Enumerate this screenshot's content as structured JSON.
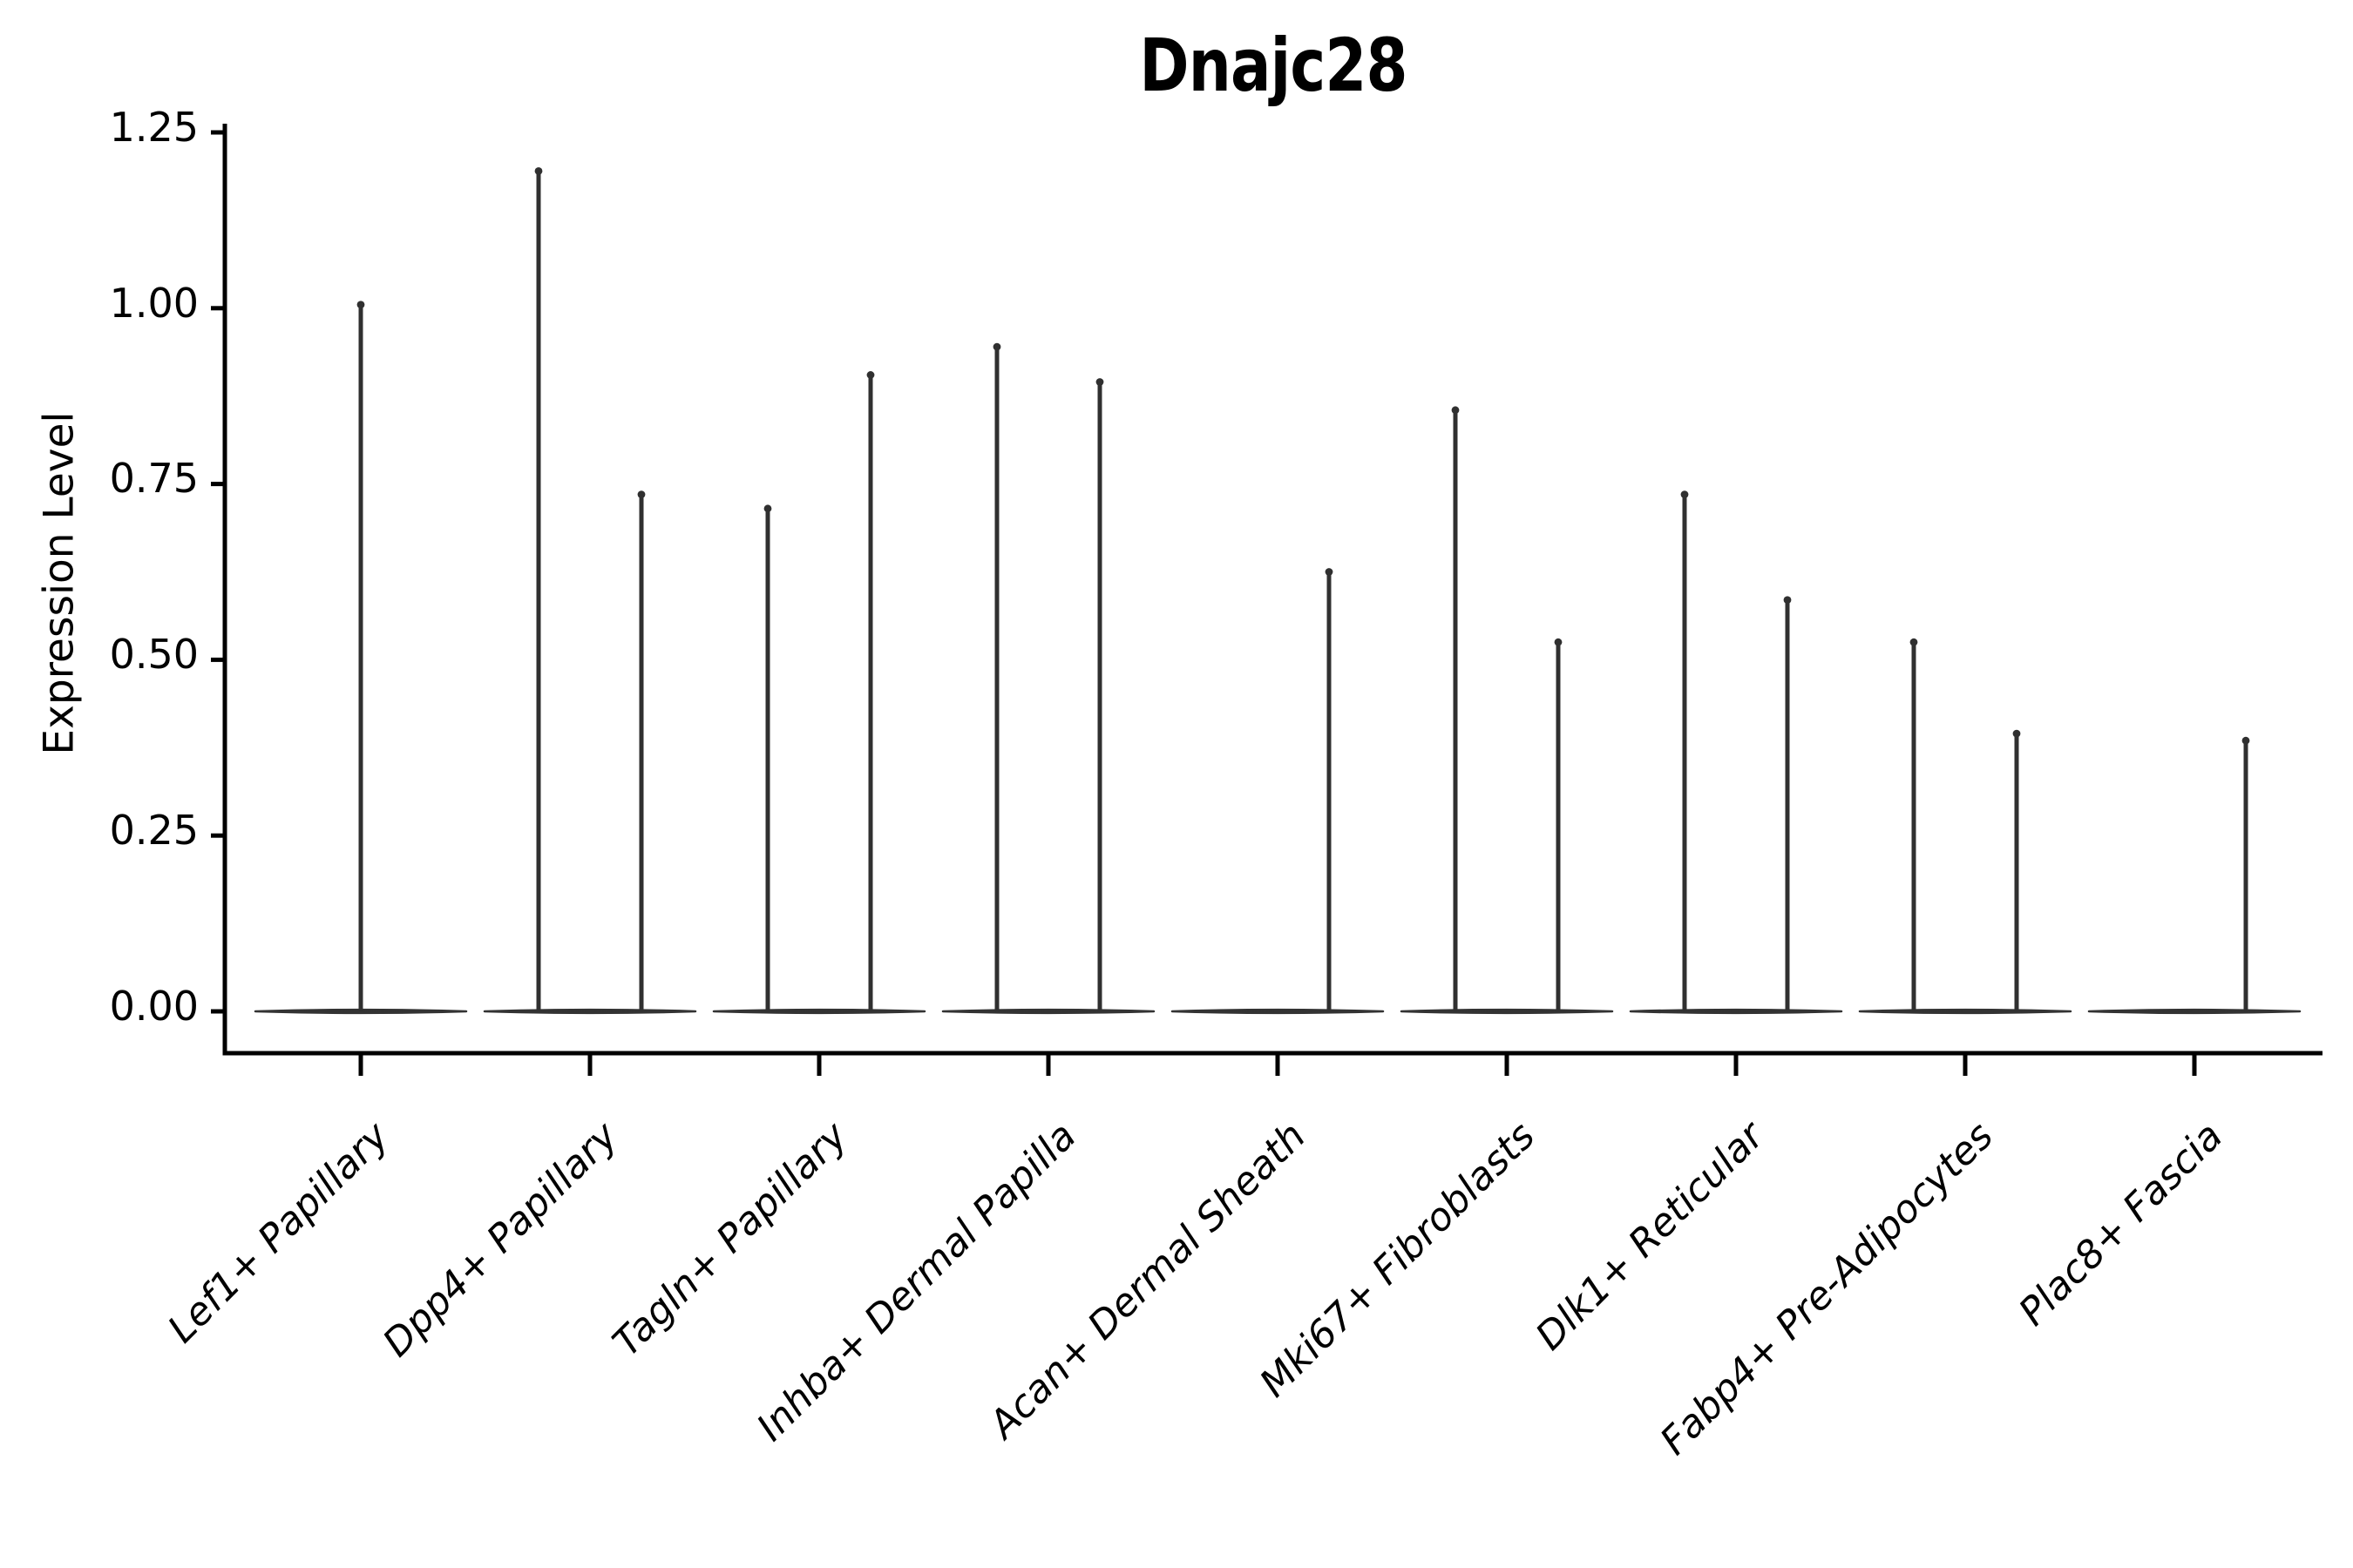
{
  "title": "Dnajc28",
  "axes": {
    "ylabel": "Expression Level",
    "xlabel": "",
    "ytick_labels": [
      "0.00",
      "0.25",
      "0.50",
      "0.75",
      "1.00",
      "1.25"
    ]
  },
  "colors": {
    "background": "#ffffff",
    "axis": "#000000",
    "text": "#000000",
    "violin": "#333333",
    "stem": "#303030"
  },
  "chart_data": {
    "type": "violin",
    "title": "Dnajc28",
    "ylabel": "Expression Level",
    "xlabel": "",
    "ylim": [
      -0.06,
      1.27
    ],
    "yticks": [
      0.0,
      0.25,
      0.5,
      0.75,
      1.0,
      1.25
    ],
    "grid": false,
    "legend": null,
    "x_tick_rotation": 45,
    "note": "Sparse single-cell expression violins: each category shows a wide flat violin base at 0 (most cells have zero expression) with thin density spikes rising to the maximum expression value; several categories contain two half-width violins side by side.",
    "categories": [
      "Lef1+ Papillary",
      "Dpp4+ Papillary",
      "Tagln+ Papillary",
      "Inhba+ Dermal Papilla",
      "Acan+ Dermal Sheath",
      "Mki67+ Fibroblasts",
      "Dlk1+ Reticular",
      "Fabp4+ Pre-Adipocytes",
      "Plac8+ Fascia"
    ],
    "violins": [
      {
        "category": "Lef1+ Papillary",
        "spikes": [
          {
            "position": "center",
            "max_expression": 1.01
          }
        ]
      },
      {
        "category": "Dpp4+ Papillary",
        "spikes": [
          {
            "position": "left",
            "max_expression": 1.2
          },
          {
            "position": "right",
            "max_expression": 0.74
          }
        ]
      },
      {
        "category": "Tagln+ Papillary",
        "spikes": [
          {
            "position": "left",
            "max_expression": 0.72
          },
          {
            "position": "right",
            "max_expression": 0.91
          }
        ]
      },
      {
        "category": "Inhba+ Dermal Papilla",
        "spikes": [
          {
            "position": "left",
            "max_expression": 0.95
          },
          {
            "position": "right",
            "max_expression": 0.9
          }
        ]
      },
      {
        "category": "Acan+ Dermal Sheath",
        "spikes": [
          {
            "position": "right",
            "max_expression": 0.63
          }
        ]
      },
      {
        "category": "Mki67+ Fibroblasts",
        "spikes": [
          {
            "position": "left",
            "max_expression": 0.86
          },
          {
            "position": "right",
            "max_expression": 0.53
          }
        ]
      },
      {
        "category": "Dlk1+ Reticular",
        "spikes": [
          {
            "position": "left",
            "max_expression": 0.74
          },
          {
            "position": "right",
            "max_expression": 0.59
          }
        ]
      },
      {
        "category": "Fabp4+ Pre-Adipocytes",
        "spikes": [
          {
            "position": "left",
            "max_expression": 0.53
          },
          {
            "position": "right",
            "max_expression": 0.4
          }
        ]
      },
      {
        "category": "Plac8+ Fascia",
        "spikes": [
          {
            "position": "right",
            "max_expression": 0.39
          }
        ]
      }
    ]
  }
}
